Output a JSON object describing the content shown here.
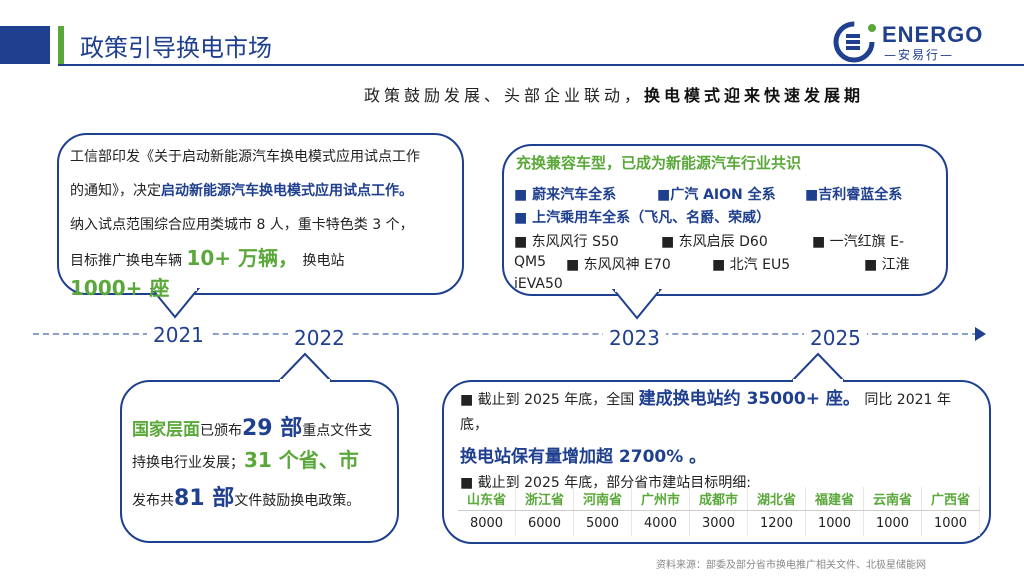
{
  "header": {
    "title": "政策引导换电市场",
    "logo_word": "ENERGO",
    "logo_sub": "—安易行—"
  },
  "subtitle": {
    "normal": "政策鼓励发展、头部企业联动，",
    "bold": "换电模式迎来快速发展期"
  },
  "timeline": {
    "years": [
      "2021",
      "2022",
      "2023",
      "2025"
    ]
  },
  "box2021": {
    "line1": "工信部印发《关于启动新能源汽车换电模式应用试点工作",
    "line2a": "的通知》，决定",
    "line2b": "启动新能源汽车换电模式应用试点工作。",
    "line3": "纳入试点范围综合应用类城市 8 人，重卡特色类 3 个，",
    "line4a": "目标推广换电车辆",
    "line4b": "10+ 万辆，",
    "line4c": "换电站",
    "line5": "1000+ 座"
  },
  "box2023": {
    "heading": "充换兼容车型，已成为新能源汽车行业共识",
    "r1": [
      "■ 蔚来汽车全系",
      "■广汽 AION  全系",
      "■吉利睿蓝全系"
    ],
    "r2": "■ 上汽乘用车全系（飞凡、名爵、荣威）",
    "r3": [
      "■ 东风风行 S50",
      "■ 东风启辰 D60",
      "■ 一汽红旗 E-"
    ],
    "r4": [
      "QM5",
      "■ 东风风神 E70",
      "■ 北汽 EU5",
      "■ 江淮"
    ],
    "r5": "iEVA50"
  },
  "box2022": {
    "p1a": "国家层面",
    "p1b": "已颁布",
    "p1c": "29 部",
    "p1d": "重点文件支",
    "p2a": "持换电行业发展；",
    "p2b": "31 个省、市",
    "p3a": "发布共",
    "p3b": "81 部",
    "p3c": "文件鼓励换电政策。"
  },
  "box2025": {
    "l1a": "■ 截止到 2025 年底，全国",
    "l1b": "建成换电站约 35000+ 座。",
    "l1c": "同比 2021 年",
    "l2": "底，",
    "l3": "换电站保有量增加超 2700% 。",
    "l4": "■ 截止到 2025 年底，部分省市建站目标明细:",
    "table_headers": [
      "山东省",
      "浙江省",
      "河南省",
      "广州市",
      "成都市",
      "湖北省",
      "福建省",
      "云南省",
      "广西省"
    ],
    "table_values": [
      "8000",
      "6000",
      "5000",
      "4000",
      "3000",
      "1200",
      "1000",
      "1000",
      "1000"
    ]
  },
  "source": "资料来源：部委及部分省市换电推广相关文件、北极星储能网",
  "colors": {
    "brand_blue": "#1f3f8f",
    "brand_green": "#5aa83a"
  }
}
